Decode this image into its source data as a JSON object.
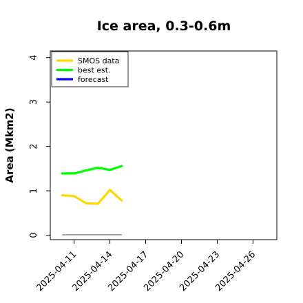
{
  "chart_data": {
    "type": "line",
    "title": "Ice area, 0.3-0.6m",
    "ylabel": "Area (Mkm2)",
    "xlabel": "",
    "ylim": [
      -0.1,
      4.15
    ],
    "xlim": [
      "2025-04-09",
      "2025-04-28"
    ],
    "yticks": [
      0,
      1,
      2,
      3,
      4
    ],
    "xticks": [
      {
        "date": "2025-04-11",
        "label": "2025-04-11",
        "color": "#000000"
      },
      {
        "date": "2025-04-14",
        "label": "2025-04-14",
        "color": "#000000"
      },
      {
        "date": "2025-04-17",
        "label": "2025-04-17",
        "color": "#228B22"
      },
      {
        "date": "2025-04-20",
        "label": "2025-04-20",
        "color": "#000000"
      },
      {
        "date": "2025-04-23",
        "label": "2025-04-23",
        "color": "#000000"
      },
      {
        "date": "2025-04-26",
        "label": "2025-04-26",
        "color": "#000000"
      }
    ],
    "legend_position": "top-left",
    "grid": false,
    "series": [
      {
        "name": "SMOS data",
        "color": "#FFD700",
        "x": [
          "2025-04-10",
          "2025-04-11",
          "2025-04-12",
          "2025-04-13",
          "2025-04-14",
          "2025-04-15"
        ],
        "y": [
          0.9,
          0.88,
          0.72,
          0.71,
          1.02,
          0.78
        ]
      },
      {
        "name": "best est.",
        "color": "#00FF00",
        "x": [
          "2025-04-10",
          "2025-04-11",
          "2025-04-12",
          "2025-04-13",
          "2025-04-14",
          "2025-04-15"
        ],
        "y": [
          1.39,
          1.39,
          1.46,
          1.52,
          1.47,
          1.56
        ]
      },
      {
        "name": "forecast",
        "color": "#0000FF",
        "x": [],
        "y": []
      }
    ],
    "baseline": {
      "color": "#808080",
      "x": [
        "2025-04-10",
        "2025-04-15"
      ],
      "y": [
        0.01,
        0.01
      ]
    }
  }
}
